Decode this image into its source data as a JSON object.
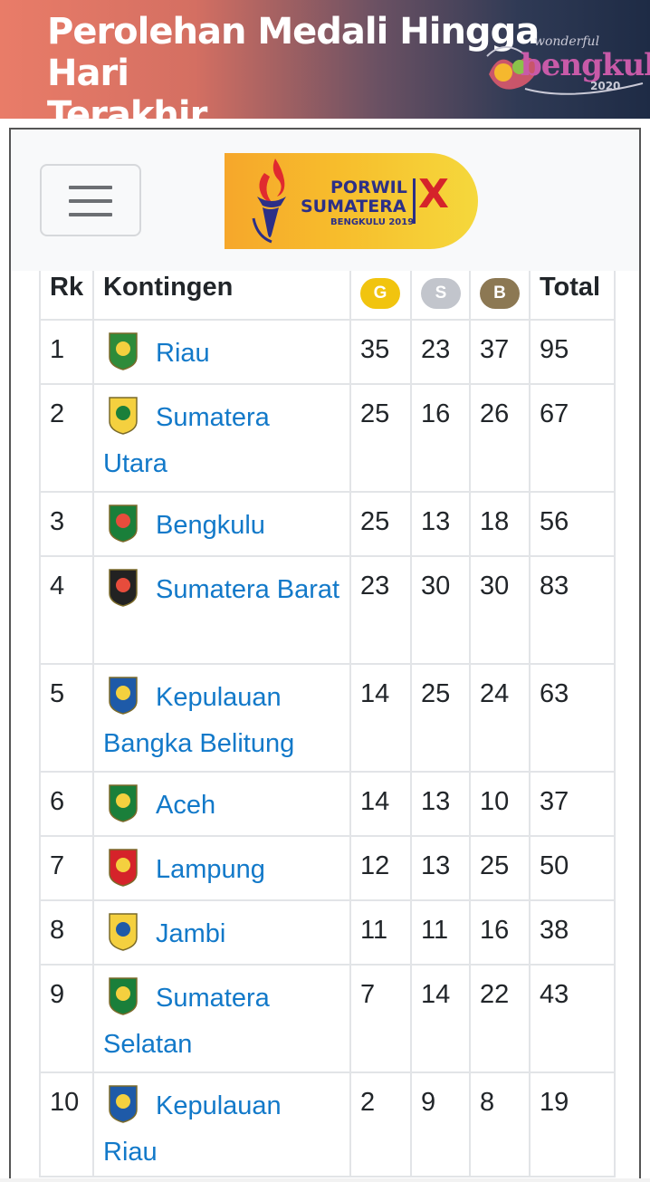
{
  "banner": {
    "title_line1": "Perolehan Medali Hingga Hari",
    "title_line2": "Terakhir",
    "logo_small": "wonderful",
    "logo_big": "bengkulu",
    "logo_year": "2020"
  },
  "navbar": {
    "brand_line1": "PORWIL",
    "brand_line2": "SUMATERA",
    "brand_line3": "BENGKULU 2019",
    "brand_numeral": "X"
  },
  "table": {
    "headers": {
      "rank": "Rk",
      "contingent": "Kontingen",
      "gold": "G",
      "silver": "S",
      "bronze": "B",
      "total": "Total"
    },
    "colors": {
      "gold": "#f1c40f",
      "silver": "#c2c5cc",
      "bronze": "#8c7853",
      "link": "#1279c9"
    },
    "rows": [
      {
        "rank": "1",
        "name": "Riau",
        "gold": "35",
        "silver": "23",
        "bronze": "37",
        "total": "95"
      },
      {
        "rank": "2",
        "name": "Sumatera Utara",
        "gold": "25",
        "silver": "16",
        "bronze": "26",
        "total": "67"
      },
      {
        "rank": "3",
        "name": "Bengkulu",
        "gold": "25",
        "silver": "13",
        "bronze": "18",
        "total": "56"
      },
      {
        "rank": "4",
        "name": "Sumatera Barat",
        "gold": "23",
        "silver": "30",
        "bronze": "30",
        "total": "83"
      },
      {
        "rank": "5",
        "name": "Kepulauan Bangka Belitung",
        "gold": "14",
        "silver": "25",
        "bronze": "24",
        "total": "63"
      },
      {
        "rank": "6",
        "name": "Aceh",
        "gold": "14",
        "silver": "13",
        "bronze": "10",
        "total": "37"
      },
      {
        "rank": "7",
        "name": "Lampung",
        "gold": "12",
        "silver": "13",
        "bronze": "25",
        "total": "50"
      },
      {
        "rank": "8",
        "name": "Jambi",
        "gold": "11",
        "silver": "11",
        "bronze": "16",
        "total": "38"
      },
      {
        "rank": "9",
        "name": "Sumatera Selatan",
        "gold": "7",
        "silver": "14",
        "bronze": "22",
        "total": "43"
      },
      {
        "rank": "10",
        "name": "Kepulauan Riau",
        "gold": "2",
        "silver": "9",
        "bronze": "8",
        "total": "19"
      }
    ]
  }
}
